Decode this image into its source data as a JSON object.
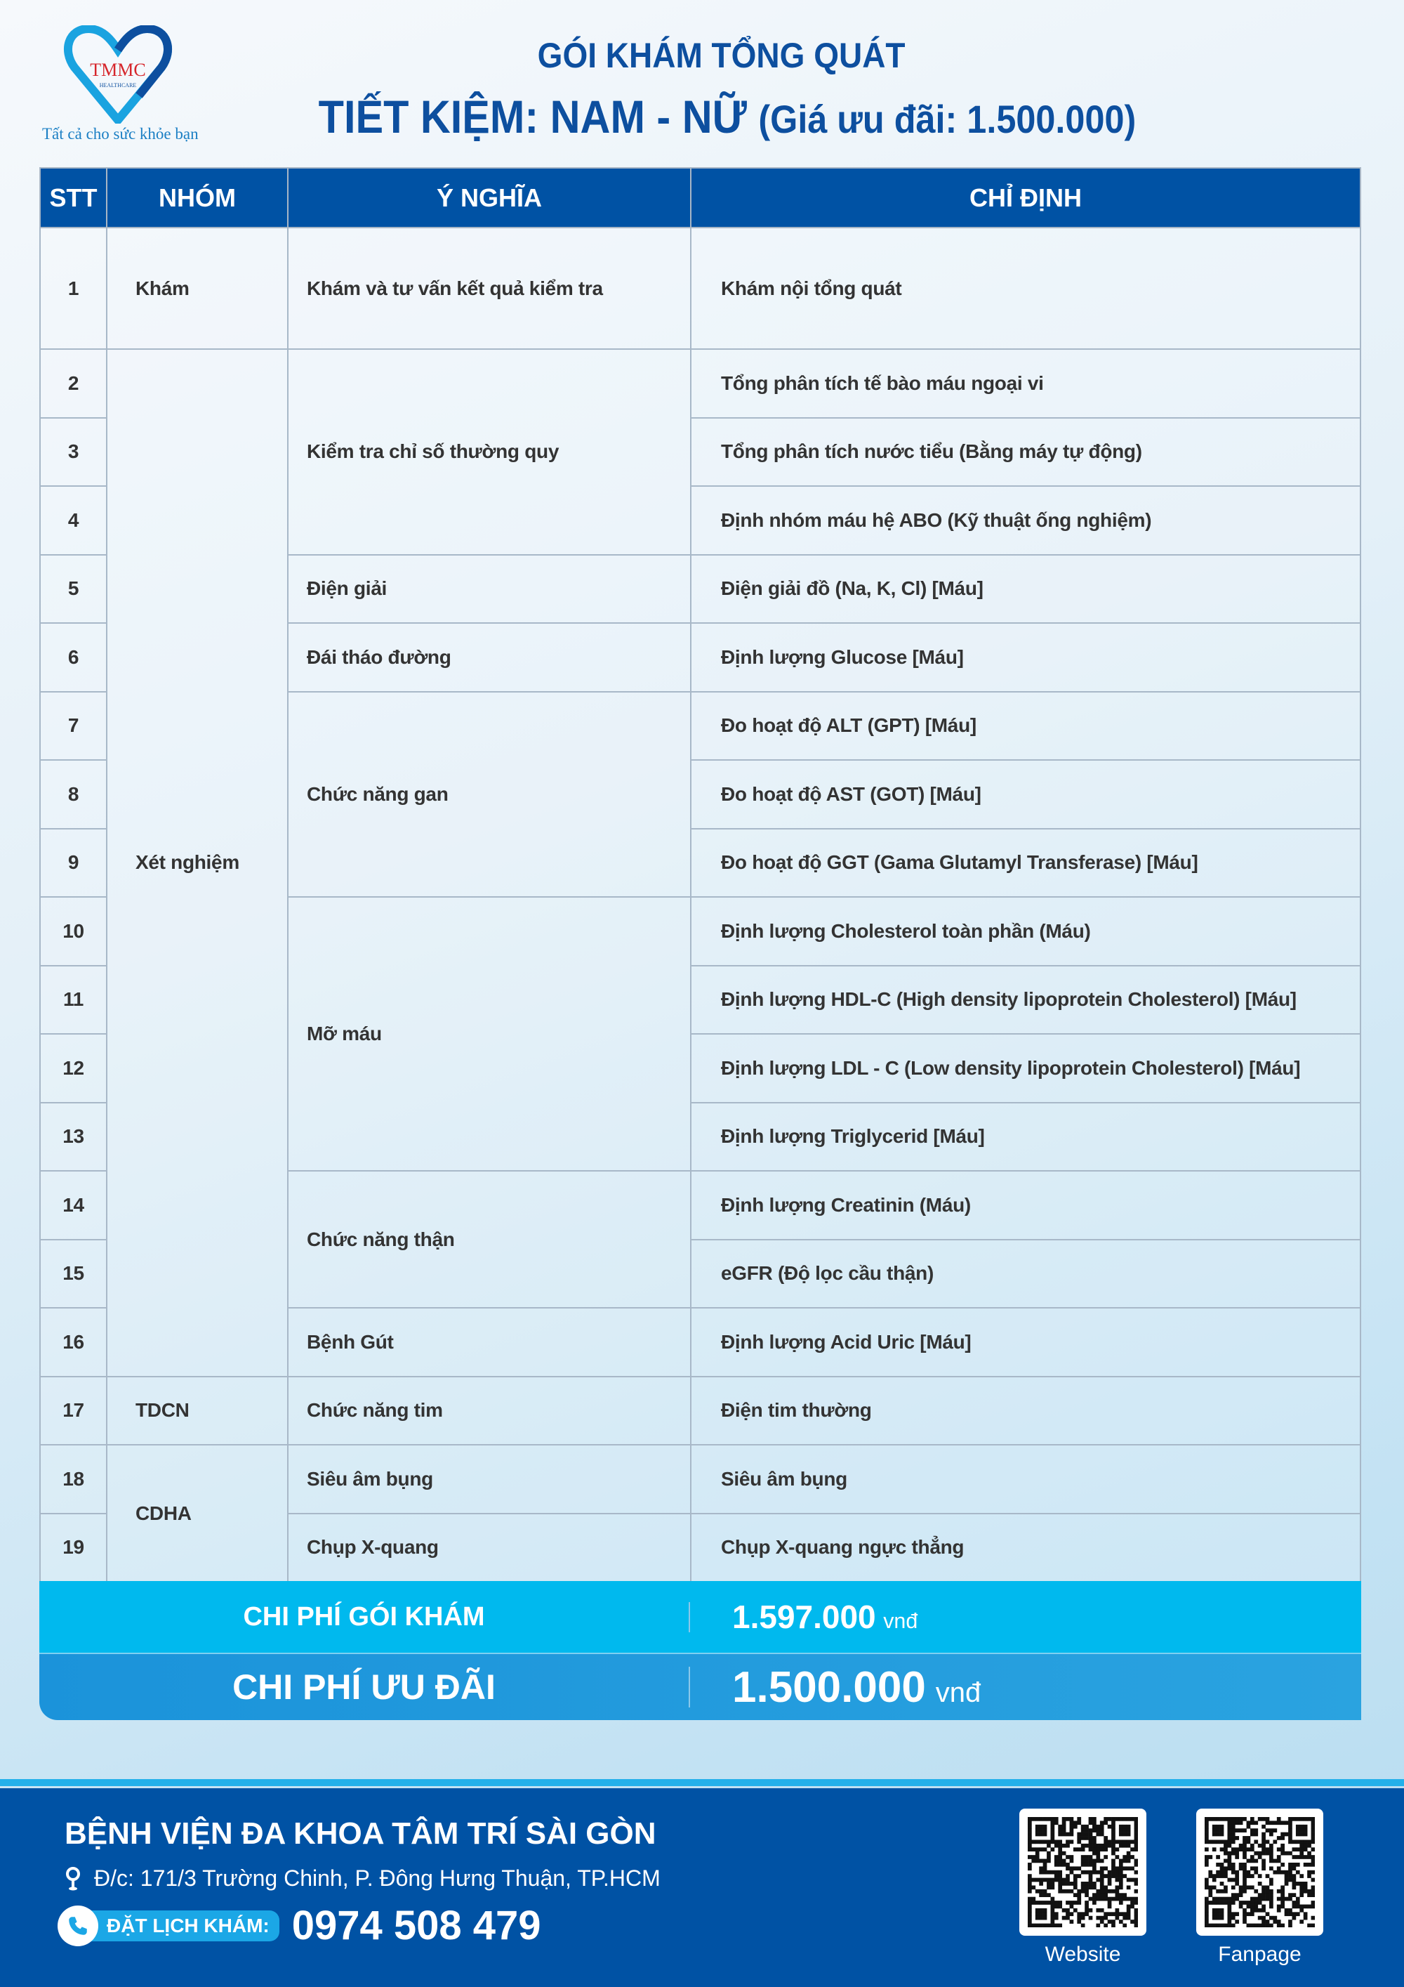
{
  "brand": {
    "logo_text": "TMMC",
    "logo_sub": "HEALTHCARE",
    "tagline": "Tất cả cho sức khỏe bạn",
    "colors": {
      "primary": "#0052a4",
      "accent": "#00b9ee",
      "title": "#0d4f9f"
    }
  },
  "header": {
    "title": "GÓI KHÁM TỔNG QUÁT",
    "subtitle": "TIẾT KIỆM: NAM - NỮ",
    "price_note": "(Giá ưu đãi: 1.500.000)"
  },
  "table": {
    "columns": [
      "STT",
      "NHÓM",
      "Ý NGHĨA",
      "CHỈ ĐỊNH"
    ],
    "groups": [
      {
        "name": "Khám",
        "purposes": [
          {
            "name": "Khám và tư vấn kết quả kiểm tra",
            "items": [
              {
                "stt": "1",
                "text": "Khám nội tổng quát"
              }
            ]
          }
        ]
      },
      {
        "name": "Xét nghiệm",
        "purposes": [
          {
            "name": "Kiểm tra chỉ số thường quy",
            "items": [
              {
                "stt": "2",
                "text": "Tổng phân tích tế bào máu ngoại vi"
              },
              {
                "stt": "3",
                "text": "Tổng phân tích nước tiểu (Bằng máy tự động)"
              },
              {
                "stt": "4",
                "text": "Định nhóm máu hệ ABO (Kỹ thuật ống nghiệm)"
              }
            ]
          },
          {
            "name": "Điện giải",
            "items": [
              {
                "stt": "5",
                "text": "Điện giải đồ (Na, K, Cl) [Máu]"
              }
            ]
          },
          {
            "name": "Đái tháo đường",
            "items": [
              {
                "stt": "6",
                "text": "Định lượng Glucose [Máu]"
              }
            ]
          },
          {
            "name": "Chức năng gan",
            "items": [
              {
                "stt": "7",
                "text": "Đo hoạt độ ALT (GPT) [Máu]"
              },
              {
                "stt": "8",
                "text": "Đo hoạt độ AST (GOT) [Máu]"
              },
              {
                "stt": "9",
                "text": "Đo hoạt độ GGT (Gama Glutamyl Transferase) [Máu]"
              }
            ]
          },
          {
            "name": "Mỡ máu",
            "items": [
              {
                "stt": "10",
                "text": "Định lượng Cholesterol toàn phần (Máu)"
              },
              {
                "stt": "11",
                "text": "Định lượng HDL-C (High density lipoprotein Cholesterol) [Máu]"
              },
              {
                "stt": "12",
                "text": "Định lượng LDL - C (Low density lipoprotein Cholesterol) [Máu]"
              },
              {
                "stt": "13",
                "text": "Định lượng Triglycerid [Máu]"
              }
            ]
          },
          {
            "name": "Chức năng thận",
            "items": [
              {
                "stt": "14",
                "text": "Định lượng Creatinin (Máu)"
              },
              {
                "stt": "15",
                "text": "eGFR (Độ lọc cầu thận)"
              }
            ]
          },
          {
            "name": "Bệnh Gút",
            "items": [
              {
                "stt": "16",
                "text": "Định lượng Acid Uric [Máu]"
              }
            ]
          }
        ]
      },
      {
        "name": "TDCN",
        "purposes": [
          {
            "name": "Chức năng tim",
            "items": [
              {
                "stt": "17",
                "text": "Điện tim thường"
              }
            ]
          }
        ]
      },
      {
        "name": "CDHA",
        "purposes": [
          {
            "name": "Siêu âm bụng",
            "items": [
              {
                "stt": "18",
                "text": "Siêu âm bụng"
              }
            ]
          },
          {
            "name": "Chụp X-quang",
            "items": [
              {
                "stt": "19",
                "text": "Chụp X-quang ngực thẳng"
              }
            ]
          }
        ]
      }
    ]
  },
  "costs": {
    "package": {
      "label": "CHI PHÍ GÓI KHÁM",
      "value": "1.597.000",
      "unit": "vnđ"
    },
    "discount": {
      "label": "CHI PHÍ ƯU ĐÃI",
      "value": "1.500.000",
      "unit": "vnđ"
    }
  },
  "footer": {
    "hospital": "BỆNH VIỆN ĐA KHOA TÂM TRÍ SÀI GÒN",
    "address": "Đ/c: 171/3 Trường Chinh, P. Đông Hưng Thuận, TP.HCM",
    "booking_label": "ĐẶT LỊCH KHÁM:",
    "phone": "0974 508 479",
    "qr": [
      {
        "label": "Website"
      },
      {
        "label": "Fanpage"
      }
    ]
  }
}
